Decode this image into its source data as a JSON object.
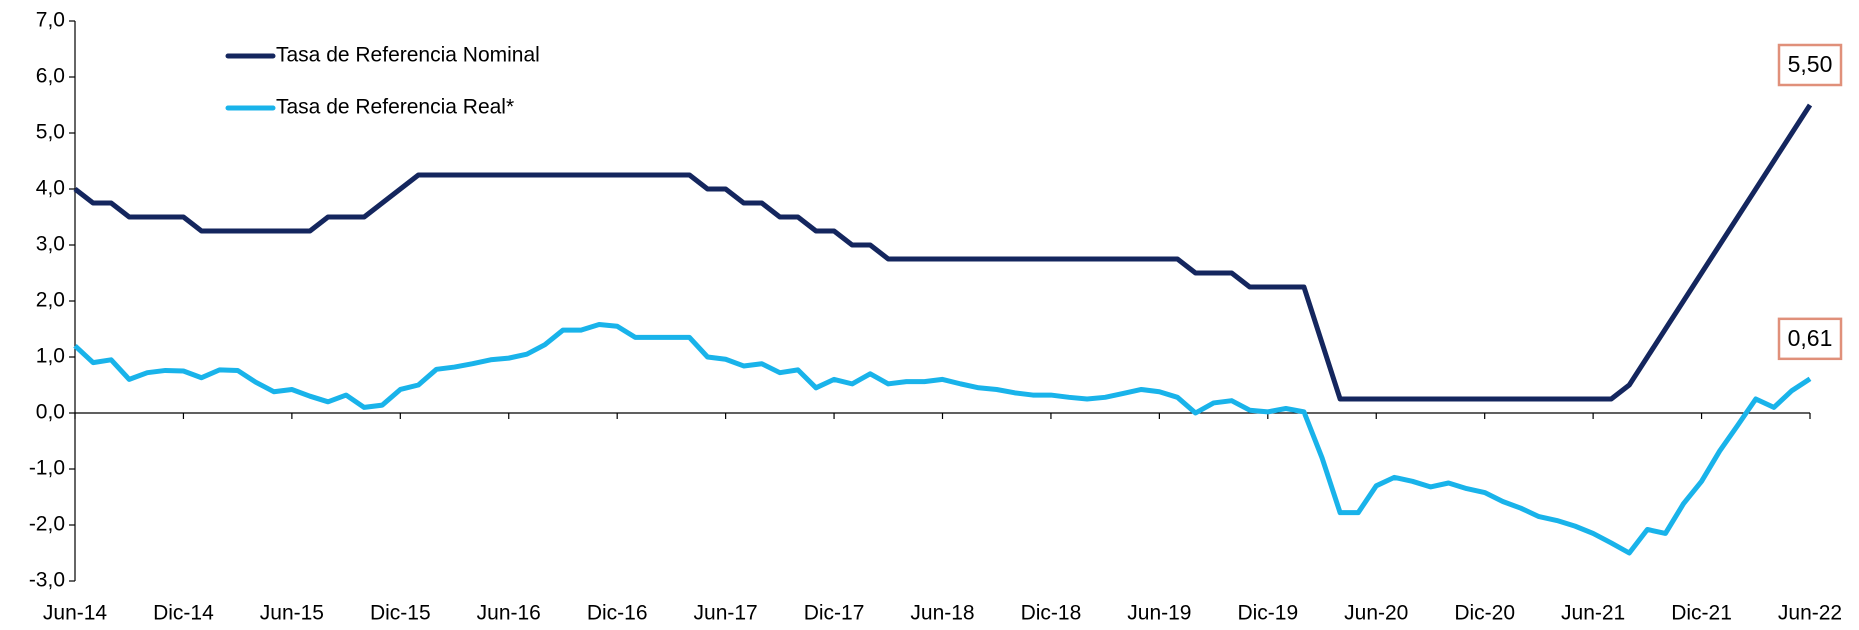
{
  "chart_data": {
    "type": "line",
    "categories": [
      "Jun-14",
      null,
      null,
      null,
      null,
      null,
      "Dic-14",
      null,
      null,
      null,
      null,
      null,
      "Jun-15",
      null,
      null,
      null,
      null,
      null,
      "Dic-15",
      null,
      null,
      null,
      null,
      null,
      "Jun-16",
      null,
      null,
      null,
      null,
      null,
      "Dic-16",
      null,
      null,
      null,
      null,
      null,
      "Jun-17",
      null,
      null,
      null,
      null,
      null,
      "Dic-17",
      null,
      null,
      null,
      null,
      null,
      "Jun-18",
      null,
      null,
      null,
      null,
      null,
      "Dic-18",
      null,
      null,
      null,
      null,
      null,
      "Jun-19",
      null,
      null,
      null,
      null,
      null,
      "Dic-19",
      null,
      null,
      null,
      null,
      null,
      "Jun-20",
      null,
      null,
      null,
      null,
      null,
      "Dic-20",
      null,
      null,
      null,
      null,
      null,
      "Jun-21",
      null,
      null,
      null,
      null,
      null,
      "Dic-21",
      null,
      null,
      null,
      null,
      null,
      "Jun-22"
    ],
    "series": [
      {
        "name": "Tasa de Referencia Nominal",
        "color": "#14265e",
        "values": [
          4.0,
          3.75,
          3.75,
          3.5,
          3.5,
          3.5,
          3.5,
          3.25,
          3.25,
          3.25,
          3.25,
          3.25,
          3.25,
          3.25,
          3.5,
          3.5,
          3.5,
          3.75,
          4.0,
          4.25,
          4.25,
          4.25,
          4.25,
          4.25,
          4.25,
          4.25,
          4.25,
          4.25,
          4.25,
          4.25,
          4.25,
          4.25,
          4.25,
          4.25,
          4.25,
          4.0,
          4.0,
          3.75,
          3.75,
          3.5,
          3.5,
          3.25,
          3.25,
          3.0,
          3.0,
          2.75,
          2.75,
          2.75,
          2.75,
          2.75,
          2.75,
          2.75,
          2.75,
          2.75,
          2.75,
          2.75,
          2.75,
          2.75,
          2.75,
          2.75,
          2.75,
          2.75,
          2.5,
          2.5,
          2.5,
          2.25,
          2.25,
          2.25,
          2.25,
          1.25,
          0.25,
          0.25,
          0.25,
          0.25,
          0.25,
          0.25,
          0.25,
          0.25,
          0.25,
          0.25,
          0.25,
          0.25,
          0.25,
          0.25,
          0.25,
          0.25,
          0.5,
          1.0,
          1.5,
          2.0,
          2.5,
          3.0,
          3.5,
          4.0,
          4.5,
          5.0,
          5.5
        ],
        "value_labels": {
          "96": "5,50"
        }
      },
      {
        "name": "Tasa de Referencia Real*",
        "color": "#19b3ea",
        "values": [
          1.2,
          0.9,
          0.95,
          0.6,
          0.72,
          0.76,
          0.75,
          0.63,
          0.77,
          0.76,
          0.55,
          0.38,
          0.42,
          0.3,
          0.2,
          0.32,
          0.1,
          0.14,
          0.42,
          0.5,
          0.78,
          0.82,
          0.88,
          0.95,
          0.98,
          1.05,
          1.22,
          1.48,
          1.48,
          1.58,
          1.55,
          1.35,
          1.35,
          1.35,
          1.35,
          1.0,
          0.96,
          0.84,
          0.88,
          0.72,
          0.77,
          0.45,
          0.6,
          0.52,
          0.7,
          0.52,
          0.56,
          0.56,
          0.6,
          0.52,
          0.45,
          0.42,
          0.36,
          0.32,
          0.32,
          0.28,
          0.25,
          0.28,
          0.35,
          0.42,
          0.38,
          0.28,
          0.0,
          0.18,
          0.22,
          0.05,
          0.02,
          0.08,
          0.02,
          -0.8,
          -1.78,
          -1.78,
          -1.3,
          -1.15,
          -1.22,
          -1.32,
          -1.25,
          -1.35,
          -1.42,
          -1.58,
          -1.7,
          -1.85,
          -1.92,
          -2.02,
          -2.15,
          -2.32,
          -2.5,
          -2.08,
          -2.15,
          -1.62,
          -1.22,
          -0.68,
          -0.22,
          0.25,
          0.1,
          0.4,
          0.61
        ],
        "value_labels": {
          "96": "0,61"
        }
      }
    ],
    "ylim": [
      -3,
      7
    ],
    "yticks": [
      {
        "value": -3,
        "label": "-3,0"
      },
      {
        "value": -2,
        "label": "-2,0"
      },
      {
        "value": -1,
        "label": "-1,0"
      },
      {
        "value": 0,
        "label": "0,0"
      },
      {
        "value": 1,
        "label": "1,0"
      },
      {
        "value": 2,
        "label": "2,0"
      },
      {
        "value": 3,
        "label": "3,0"
      },
      {
        "value": 4,
        "label": "4,0"
      },
      {
        "value": 5,
        "label": "5,0"
      },
      {
        "value": 6,
        "label": "6,0"
      },
      {
        "value": 7,
        "label": "7,0"
      }
    ],
    "grid": false,
    "legend": "top-left",
    "label_border_color": "#e0907a"
  }
}
